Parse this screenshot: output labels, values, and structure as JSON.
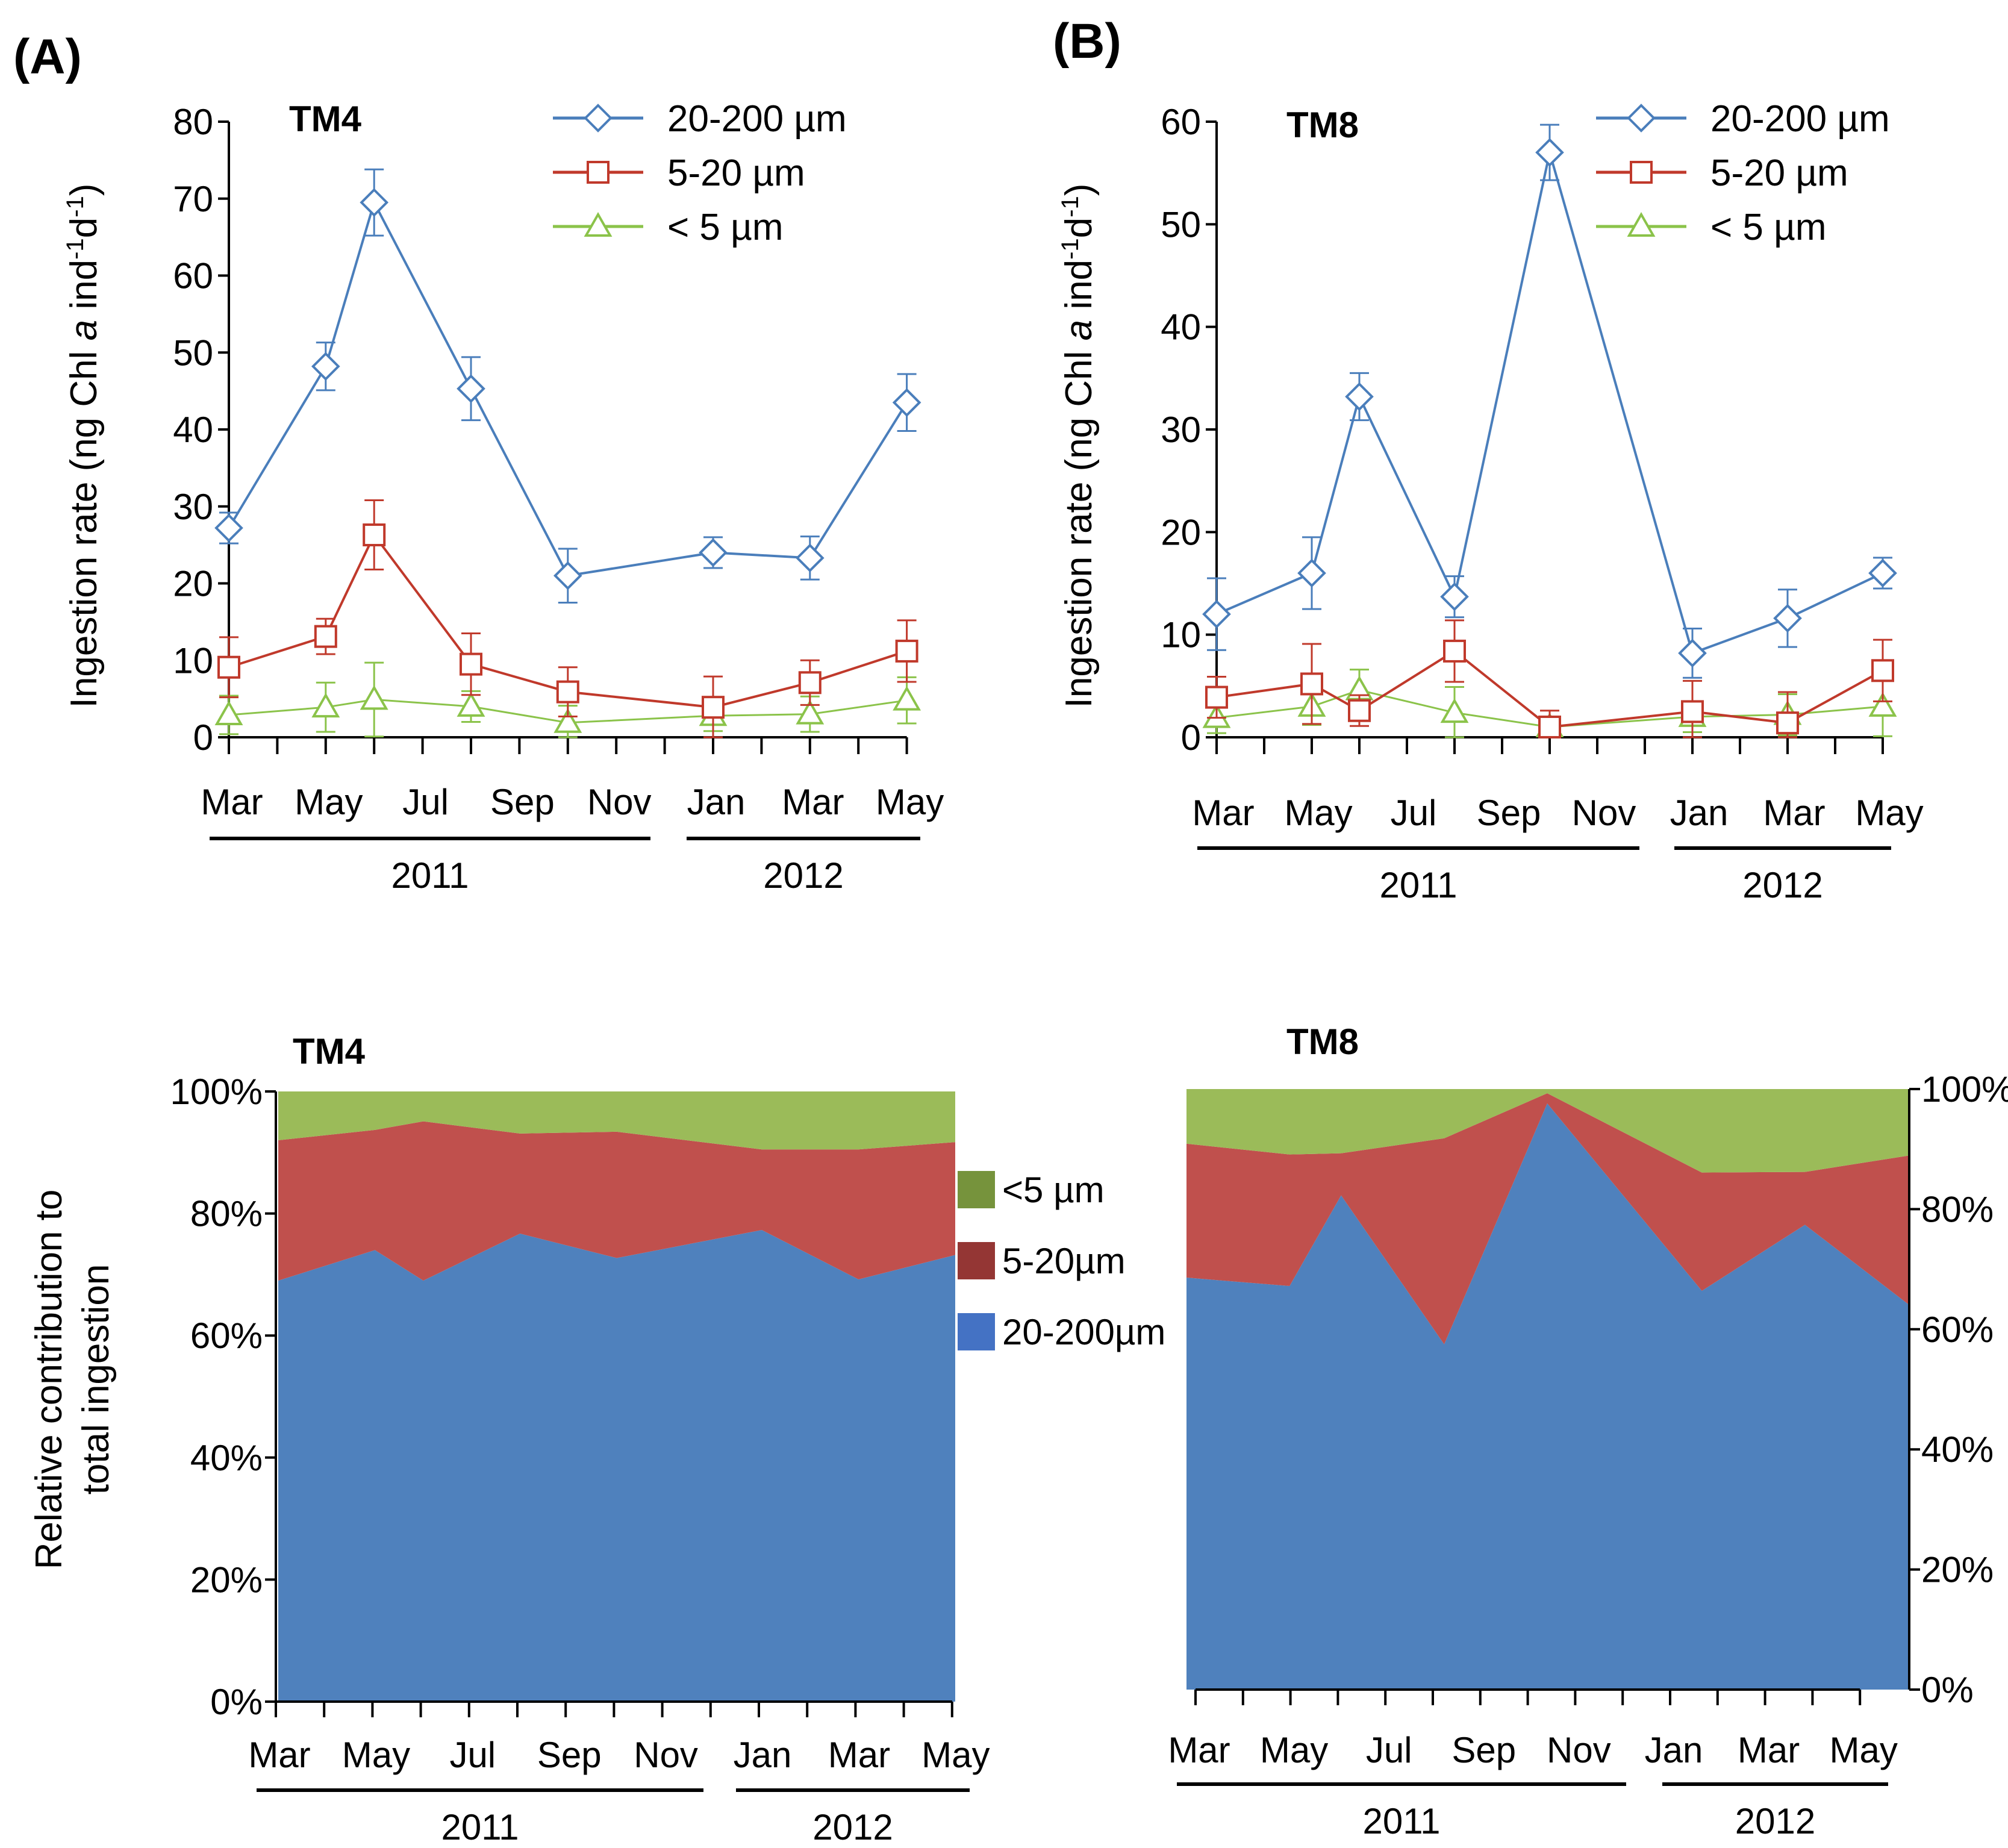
{
  "panels": {
    "A": {
      "letter": "(A)"
    },
    "B": {
      "letter": "(B)"
    }
  },
  "chart_data": [
    {
      "type": "line",
      "panel": "A",
      "title": "TM4",
      "ylabel": "Ingestion rate (ng Chl a ind-1d-1)",
      "ylim": [
        0,
        80
      ],
      "yticks": [
        "0",
        "10",
        "20",
        "30",
        "40",
        "50",
        "60",
        "70",
        "80"
      ],
      "x_tick_labels": [
        "Mar",
        "May",
        "Jul",
        "Sep",
        "Nov",
        "Jan",
        "Mar",
        "May"
      ],
      "year_labels": [
        "2011",
        "2012"
      ],
      "x_months": [
        0,
        2,
        3,
        5,
        7,
        10,
        12,
        14
      ],
      "series": [
        {
          "name": "20-200 µm",
          "color": "#4a7ebb",
          "marker": "diamond",
          "values": [
            27.2,
            48.2,
            69.5,
            45.3,
            21.0,
            24.0,
            23.3,
            43.5
          ],
          "errors": [
            2.0,
            3.1,
            4.3,
            4.1,
            3.5,
            2.0,
            2.8,
            3.7
          ]
        },
        {
          "name": "5-20 µm",
          "color": "#c0392b",
          "marker": "square",
          "values": [
            9.1,
            13.1,
            26.3,
            9.5,
            5.9,
            3.9,
            7.1,
            11.2
          ],
          "errors": [
            3.9,
            2.3,
            4.5,
            4.0,
            3.2,
            4.0,
            2.9,
            4.0
          ]
        },
        {
          "name": "< 5 µm",
          "color": "#8bc34a",
          "marker": "triangle",
          "values": [
            2.9,
            3.9,
            4.9,
            4.0,
            1.9,
            2.8,
            3.0,
            4.8
          ],
          "errors": [
            2.5,
            3.2,
            4.8,
            2.0,
            2.2,
            2.0,
            2.3,
            3.0
          ]
        }
      ]
    },
    {
      "type": "line",
      "panel": "B",
      "title": "TM8",
      "ylabel": "Ingestion rate (ng Chl a ind-1d-1)",
      "ylim": [
        0,
        60
      ],
      "yticks": [
        "0",
        "10",
        "20",
        "30",
        "40",
        "50",
        "60"
      ],
      "x_tick_labels": [
        "Mar",
        "May",
        "Jul",
        "Sep",
        "Nov",
        "Jan",
        "Mar",
        "May"
      ],
      "year_labels": [
        "2011",
        "2012"
      ],
      "x_months": [
        0,
        2,
        3,
        5,
        7,
        10,
        12,
        14
      ],
      "series": [
        {
          "name": "20-200 µm",
          "color": "#4a7ebb",
          "marker": "diamond",
          "values": [
            12.0,
            16.0,
            33.2,
            13.7,
            57.0,
            8.2,
            11.6,
            16.0
          ],
          "errors": [
            3.5,
            3.5,
            2.3,
            2.0,
            2.7,
            2.4,
            2.8,
            1.5
          ]
        },
        {
          "name": "5-20 µm",
          "color": "#c0392b",
          "marker": "square",
          "values": [
            3.9,
            5.2,
            2.6,
            8.4,
            1.0,
            2.5,
            1.4,
            6.5
          ],
          "errors": [
            2.0,
            3.9,
            1.5,
            3.0,
            1.6,
            3.0,
            3.0,
            3.0
          ]
        },
        {
          "name": "< 5 µm",
          "color": "#8bc34a",
          "marker": "triangle",
          "values": [
            1.9,
            3.0,
            4.6,
            2.4,
            1.0,
            2.0,
            2.2,
            3.0
          ],
          "errors": [
            1.5,
            1.8,
            2.0,
            2.5,
            0.7,
            1.5,
            2.0,
            2.9
          ]
        }
      ]
    },
    {
      "type": "area",
      "stacked": true,
      "panel": "A-bottom",
      "title": "TM4",
      "ylabel": "Relative contribution to total ingestion",
      "ylim": [
        0,
        100
      ],
      "yticks": [
        "0%",
        "20%",
        "40%",
        "60%",
        "80%",
        "100%"
      ],
      "x_tick_labels": [
        "Mar",
        "May",
        "Jul",
        "Sep",
        "Nov",
        "Jan",
        "Mar",
        "May"
      ],
      "year_labels": [
        "2011",
        "2012"
      ],
      "x_months": [
        0,
        2,
        3,
        5,
        7,
        10,
        12,
        14
      ],
      "legend_title_entries": [
        "<5 µm",
        "5-20µm",
        "20-200µm"
      ],
      "series": [
        {
          "name": "20-200µm",
          "color": "#4f81bd",
          "values": [
            69.0,
            74.0,
            69.0,
            76.7,
            72.7,
            77.3,
            69.2,
            73.2
          ]
        },
        {
          "name": "5-20µm",
          "color": "#c0504d",
          "values": [
            23.0,
            19.7,
            26.1,
            16.4,
            20.7,
            13.2,
            21.3,
            18.5
          ]
        },
        {
          "name": "<5 µm",
          "color": "#9bbb59",
          "values": [
            8.0,
            6.3,
            4.9,
            6.9,
            6.6,
            9.5,
            9.5,
            8.3
          ]
        }
      ]
    },
    {
      "type": "area",
      "stacked": true,
      "panel": "B-bottom",
      "title": "TM8",
      "ylim": [
        0,
        100
      ],
      "yticks": [
        "0%",
        "20%",
        "40%",
        "60%",
        "80%",
        "100%"
      ],
      "x_tick_labels": [
        "Mar",
        "May",
        "Jul",
        "Sep",
        "Nov",
        "Jan",
        "Mar",
        "May"
      ],
      "year_labels": [
        "2011",
        "2012"
      ],
      "x_months": [
        0,
        2,
        3,
        5,
        7,
        10,
        12,
        14
      ],
      "series": [
        {
          "name": "20-200µm",
          "color": "#4f81bd",
          "values": [
            68.6,
            67.2,
            82.3,
            57.5,
            97.6,
            66.4,
            77.4,
            64.2
          ]
        },
        {
          "name": "5-20µm",
          "color": "#c0504d",
          "values": [
            22.3,
            21.9,
            7.0,
            34.3,
            1.7,
            19.7,
            8.8,
            24.7
          ]
        },
        {
          "name": "<5 µm",
          "color": "#9bbb59",
          "values": [
            9.1,
            10.9,
            10.7,
            8.2,
            0.7,
            13.9,
            13.8,
            11.1
          ]
        }
      ]
    }
  ]
}
